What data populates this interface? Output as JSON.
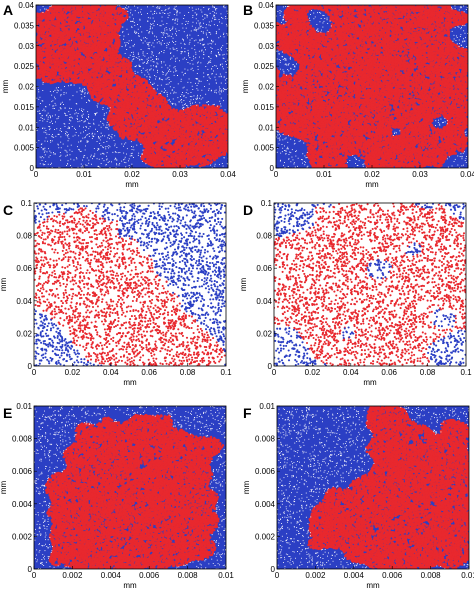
{
  "colors": {
    "phase_a": "#e8282e",
    "phase_b": "#2b3fc4",
    "speckle": "#ffffff",
    "background": "#ffffff"
  },
  "chart_data": [
    {
      "panel": "A",
      "type": "scatter",
      "style": "dense",
      "xlabel": "mm",
      "ylabel": "mm",
      "xlim": [
        0,
        0.04
      ],
      "ylim": [
        0,
        0.04
      ],
      "xticks": [
        "0",
        "0.01",
        "0.02",
        "0.03",
        "0.04"
      ],
      "yticks": [
        "0",
        "0.005",
        "0.01",
        "0.015",
        "0.02",
        "0.025",
        "0.03",
        "0.035",
        "0.04"
      ],
      "series": [
        {
          "color": "red",
          "region": "upper-left band curving down to the lower-right corner"
        },
        {
          "color": "blue",
          "region": "lower-left and upper-right"
        }
      ]
    },
    {
      "panel": "B",
      "type": "scatter",
      "style": "dense",
      "xlabel": "mm",
      "ylabel": "mm",
      "xlim": [
        0,
        0.04
      ],
      "ylim": [
        0,
        0.04
      ],
      "xticks": [
        "0",
        "0.01",
        "0.02",
        "0.03",
        "0.04"
      ],
      "yticks": [
        "0",
        "0.005",
        "0.01",
        "0.015",
        "0.02",
        "0.025",
        "0.03",
        "0.035",
        "0.04"
      ],
      "series": [
        {
          "color": "red",
          "region": "dominant, fills most of the domain"
        },
        {
          "color": "blue",
          "region": "scattered islands and edges"
        }
      ]
    },
    {
      "panel": "C",
      "type": "scatter",
      "style": "sparse",
      "xlabel": "mm",
      "ylabel": "mm",
      "xlim": [
        0,
        0.1
      ],
      "ylim": [
        0,
        0.1
      ],
      "xticks": [
        "0",
        "0.02",
        "0.04",
        "0.06",
        "0.08",
        "0.1"
      ],
      "yticks": [
        "0",
        "0.02",
        "0.04",
        "0.06",
        "0.08",
        "0.1"
      ],
      "series": [
        {
          "color": "red",
          "region": "left and lower-center"
        },
        {
          "color": "blue",
          "region": "upper-right and bottom-left corner"
        }
      ]
    },
    {
      "panel": "D",
      "type": "scatter",
      "style": "sparse",
      "xlabel": "mm",
      "ylabel": "mm",
      "xlim": [
        0,
        0.1
      ],
      "ylim": [
        0,
        0.1
      ],
      "xticks": [
        "0",
        "0.02",
        "0.04",
        "0.06",
        "0.08",
        "0.1"
      ],
      "yticks": [
        "0",
        "0.02",
        "0.04",
        "0.06",
        "0.08",
        "0.1"
      ],
      "series": [
        {
          "color": "red",
          "region": "dominant across the domain"
        },
        {
          "color": "blue",
          "region": "small patches and edges"
        }
      ]
    },
    {
      "panel": "E",
      "type": "scatter",
      "style": "dense",
      "xlabel": "mm",
      "ylabel": "mm",
      "xlim": [
        0,
        0.01
      ],
      "ylim": [
        0,
        0.01
      ],
      "xticks": [
        "0",
        "0.002",
        "0.004",
        "0.006",
        "0.008",
        "0.01"
      ],
      "yticks": [
        "0",
        "0.002",
        "0.004",
        "0.006",
        "0.008",
        "0.01"
      ],
      "series": [
        {
          "color": "red",
          "region": "central and lower network"
        },
        {
          "color": "blue",
          "region": "corners and left edge"
        }
      ]
    },
    {
      "panel": "F",
      "type": "scatter",
      "style": "dense",
      "xlabel": "mm",
      "ylabel": "mm",
      "xlim": [
        0,
        0.01
      ],
      "ylim": [
        0,
        0.01
      ],
      "xticks": [
        "0",
        "0.002",
        "0.004",
        "0.006",
        "0.008",
        "0.01"
      ],
      "yticks": [
        "0",
        "0.002",
        "0.004",
        "0.006",
        "0.008",
        "0.01"
      ],
      "series": [
        {
          "color": "red",
          "region": "right side and lower network"
        },
        {
          "color": "blue",
          "region": "upper-left and bottom-left"
        }
      ]
    }
  ]
}
